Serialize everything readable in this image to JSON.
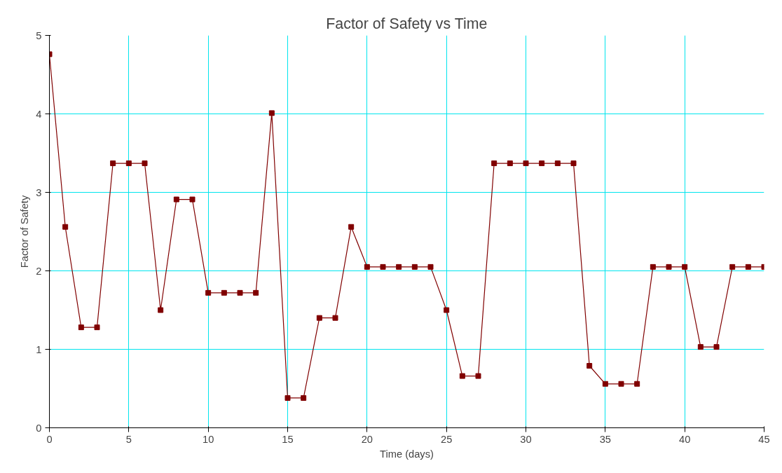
{
  "chart_data": {
    "type": "line",
    "title": "Factor of Safety vs Time",
    "xlabel": "Time (days)",
    "ylabel": "Factor of Safety",
    "x": [
      0,
      1,
      2,
      3,
      4,
      5,
      6,
      7,
      8,
      9,
      10,
      11,
      12,
      13,
      14,
      15,
      16,
      17,
      18,
      19,
      20,
      21,
      22,
      23,
      24,
      25,
      26,
      27,
      28,
      29,
      30,
      31,
      32,
      33,
      34,
      35,
      36,
      37,
      38,
      39,
      40,
      41,
      42,
      43,
      44,
      45
    ],
    "series": [
      {
        "color": "#800000",
        "values": [
          4.76,
          2.56,
          1.28,
          1.28,
          3.37,
          3.37,
          3.37,
          1.5,
          2.91,
          2.91,
          1.72,
          1.72,
          1.72,
          1.72,
          4.01,
          0.38,
          0.38,
          1.4,
          1.4,
          2.56,
          2.05,
          2.05,
          2.05,
          2.05,
          2.05,
          1.5,
          0.66,
          0.66,
          3.37,
          3.37,
          3.37,
          3.37,
          3.37,
          3.37,
          0.79,
          0.56,
          0.56,
          0.56,
          2.05,
          2.05,
          2.05,
          1.03,
          1.03,
          2.05,
          2.05,
          2.05
        ]
      }
    ],
    "xlim": [
      0,
      45
    ],
    "ylim": [
      0,
      5
    ],
    "xticks": [
      0,
      5,
      10,
      15,
      20,
      25,
      30,
      35,
      40,
      45
    ],
    "yticks": [
      0,
      1,
      2,
      3,
      4,
      5
    ],
    "grid": true,
    "marker": "square",
    "line_style": "solid"
  }
}
